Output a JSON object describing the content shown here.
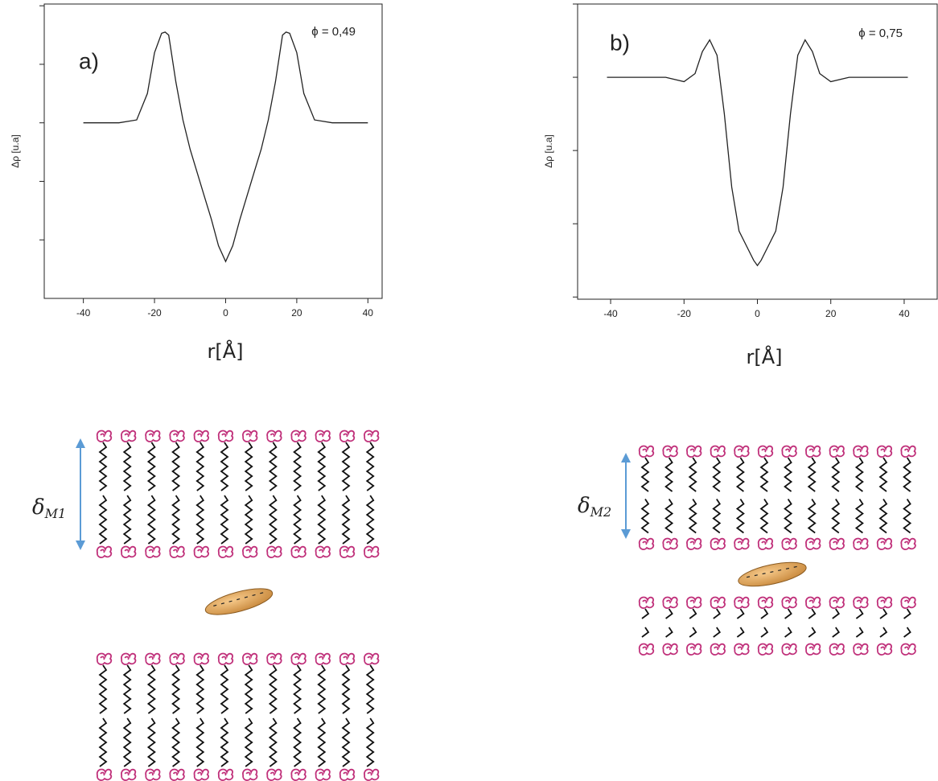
{
  "chart_data": [
    {
      "type": "line",
      "y_label": "Δρ [u.a]",
      "x_label": "r[Å]",
      "panel": "a)",
      "annotation": "ϕ = 0,49",
      "xlim": [
        -51,
        44
      ],
      "xticks": [
        -40,
        -20,
        0,
        20,
        40
      ],
      "ylim": [
        -3,
        2.03
      ],
      "yticks": [
        -2,
        -1,
        0,
        1,
        2
      ],
      "color": "#222222",
      "x": [
        -40,
        -30,
        -25,
        -22,
        -20,
        -18,
        -17,
        -16,
        -14,
        -12,
        -10,
        -8,
        -6,
        -4,
        -2,
        0,
        2,
        4,
        6,
        8,
        10,
        12,
        14,
        16,
        17,
        18,
        20,
        22,
        25,
        30,
        40
      ],
      "values": [
        0,
        0,
        0.05,
        0.5,
        1.2,
        1.53,
        1.55,
        1.5,
        0.7,
        0.05,
        -0.45,
        -0.85,
        -1.25,
        -1.65,
        -2.1,
        -2.37,
        -2.1,
        -1.65,
        -1.25,
        -0.85,
        -0.45,
        0.05,
        0.7,
        1.5,
        1.55,
        1.53,
        1.2,
        0.5,
        0.05,
        0,
        0
      ]
    },
    {
      "type": "line",
      "y_label": "Δρ [u.a]",
      "x_label": "r[Å]",
      "panel": "b)",
      "annotation": "ϕ = 0,75",
      "xlim": [
        -49,
        49
      ],
      "xticks": [
        -40,
        -20,
        0,
        20,
        40
      ],
      "ylim": [
        -3.03,
        1
      ],
      "yticks": [
        -3,
        -2,
        -1,
        0,
        1
      ],
      "color": "#222222",
      "x": [
        -41,
        -25,
        -20,
        -17,
        -15,
        -13,
        -11,
        -9,
        -7,
        -5,
        -3,
        -1,
        0,
        1,
        3,
        5,
        7,
        9,
        11,
        13,
        15,
        17,
        20,
        25,
        41
      ],
      "values": [
        0,
        0,
        -0.06,
        0.05,
        0.35,
        0.51,
        0.3,
        -0.5,
        -1.5,
        -2.1,
        -2.3,
        -2.5,
        -2.57,
        -2.5,
        -2.3,
        -2.1,
        -1.5,
        -0.5,
        0.3,
        0.51,
        0.35,
        0.05,
        -0.06,
        0,
        0
      ]
    }
  ],
  "diagram": {
    "labels": [
      {
        "symbol": "δ",
        "subscript": "M1"
      },
      {
        "symbol": "δ",
        "subscript": "M2"
      }
    ]
  }
}
